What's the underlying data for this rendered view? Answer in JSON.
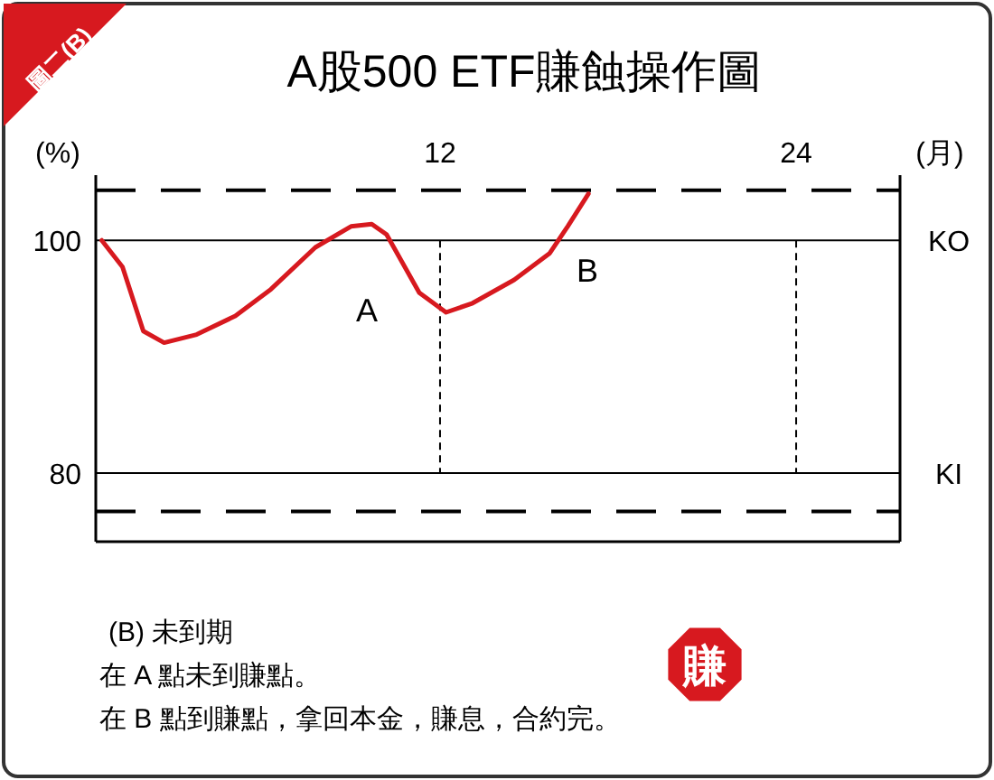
{
  "chart_data": {
    "type": "line",
    "title": "A股500 ETF賺蝕操作圖",
    "xlabel": "(月)",
    "ylabel": "(%)",
    "x": [
      0.6,
      1.3,
      2.0,
      2.7,
      3.8,
      5.1,
      6.3,
      7.8,
      9.0,
      9.7,
      10.2,
      11.3,
      12.2,
      13.1,
      14.5,
      15.7,
      16.3,
      17.0
    ],
    "series": [
      {
        "color": "#d7191f",
        "values": [
          100,
          97.7,
          92.2,
          91.2,
          91.9,
          93.5,
          95.8,
          99.4,
          101.2,
          101.4,
          100.5,
          95.5,
          93.8,
          94.6,
          96.6,
          98.9,
          101.2,
          104.0
        ]
      }
    ],
    "xlim": [
      0.4,
      27.5
    ],
    "ylim": [
      74.1,
      105.6
    ],
    "xticks": [
      12,
      24
    ],
    "yticks": [
      100,
      80
    ],
    "marker": "none",
    "line_style": "solid",
    "grid": false,
    "ref_lines": [
      {
        "axis": "y",
        "value": 100,
        "label": "KO",
        "color": "#000000",
        "line_style": "solid"
      },
      {
        "axis": "y",
        "value": 80,
        "label": "KI",
        "color": "#000000",
        "line_style": "solid"
      },
      {
        "axis": "y",
        "value": 104.3,
        "color": "#000000",
        "line_style": "dashed"
      },
      {
        "axis": "y",
        "value": 76.7,
        "color": "#000000",
        "line_style": "dashed"
      },
      {
        "axis": "x",
        "value": 12,
        "color": "#000000",
        "line_style": "dashed"
      },
      {
        "axis": "x",
        "value": 24,
        "color": "#000000",
        "line_style": "dashed"
      }
    ],
    "annotations": [
      "圖二(B)",
      "A",
      "B",
      "(B) 未到期",
      "在 A 點未到賺點。",
      "在 B 點到賺點，拿回本金，賺息，合約完。",
      "賺"
    ]
  }
}
